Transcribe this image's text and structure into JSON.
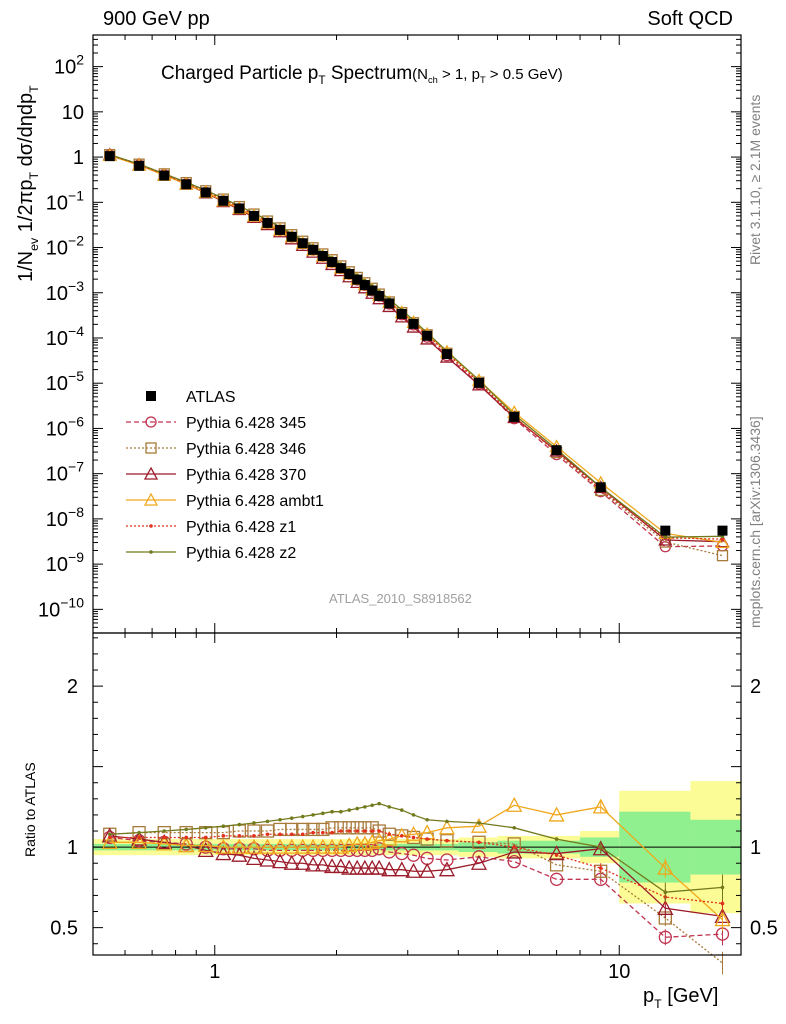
{
  "header": {
    "left": "900 GeV pp",
    "right": "Soft QCD"
  },
  "title": {
    "main": "Charged Particle p",
    "main_sub": "T",
    "main_tail": " Spectrum",
    "cond_open": "(N",
    "cond_sub": "ch",
    "cond_mid": " > 1, p",
    "cond_sub2": "T",
    "cond_tail": " > 0.5 GeV)"
  },
  "side_labels": {
    "rivet": "Rivet 3.1.10, ≥ 2.1M events",
    "mcplots": "mcplots.cern.ch [arXiv:1306.3436]"
  },
  "analysis_id": "ATLAS_2010_S8918562",
  "colors": {
    "data": "#000000",
    "p345": "#c0334e",
    "p346": "#a87a3a",
    "p370": "#9b1b2a",
    "ambt1": "#f0a81e",
    "z1": "#e0321c",
    "z2": "#727a1c",
    "band_green": "#90f090",
    "band_yellow": "#fcfc96"
  },
  "chart_data": [
    {
      "type": "scatter",
      "panel": "main",
      "ylabel_parts": {
        "a": "1/N",
        "a_sub": "ev",
        "b": " 1/2πp",
        "b_sub": "T",
        "c": " dσ/dηdp",
        "c_sub": "T"
      },
      "x_scale": "log",
      "y_scale": "log",
      "xlim": [
        0.5,
        20
      ],
      "ylim": [
        3e-11,
        500
      ],
      "x_ticks": [
        {
          "v": 1,
          "label": "1"
        },
        {
          "v": 10,
          "label": "10"
        }
      ],
      "y_ticks": [
        {
          "v": 100,
          "base": "10",
          "exp": "2"
        },
        {
          "v": 10,
          "base": "10",
          "exp": ""
        },
        {
          "v": 1,
          "base": "1",
          "exp": ""
        },
        {
          "v": 0.1,
          "base": "10",
          "exp": "−1"
        },
        {
          "v": 0.01,
          "base": "10",
          "exp": "−2"
        },
        {
          "v": 0.001,
          "base": "10",
          "exp": "−3"
        },
        {
          "v": 0.0001,
          "base": "10",
          "exp": "−4"
        },
        {
          "v": 1e-05,
          "base": "10",
          "exp": "−5"
        },
        {
          "v": 1e-06,
          "base": "10",
          "exp": "−6"
        },
        {
          "v": 1e-07,
          "base": "10",
          "exp": "−7"
        },
        {
          "v": 1e-08,
          "base": "10",
          "exp": "−8"
        },
        {
          "v": 1e-09,
          "base": "10",
          "exp": "−9"
        },
        {
          "v": 1e-10,
          "base": "10",
          "exp": "−10"
        }
      ],
      "x": [
        0.55,
        0.65,
        0.75,
        0.85,
        0.95,
        1.05,
        1.15,
        1.25,
        1.35,
        1.45,
        1.55,
        1.65,
        1.75,
        1.85,
        1.95,
        2.05,
        2.15,
        2.25,
        2.35,
        2.45,
        2.55,
        2.7,
        2.9,
        3.1,
        3.35,
        3.75,
        4.5,
        5.5,
        7.0,
        9.0,
        13.0,
        18.0
      ],
      "data_values": [
        1.05,
        0.64,
        0.39,
        0.25,
        0.165,
        0.108,
        0.073,
        0.05,
        0.035,
        0.0245,
        0.0173,
        0.0124,
        0.0089,
        0.0065,
        0.0048,
        0.0035,
        0.0026,
        0.00195,
        0.00148,
        0.00112,
        0.00085,
        0.00058,
        0.00034,
        0.000205,
        0.000112,
        4.4e-05,
        1.02e-05,
        1.8e-06,
        3.3e-07,
        5e-08,
        5.5e-09,
        5.5e-09
      ],
      "series": [
        {
          "name": "ATLAS",
          "key": "data",
          "marker": "square",
          "line": "none"
        },
        {
          "name": "Pythia 6.428 345",
          "key": "p345",
          "marker": "circle",
          "line": "dashed"
        },
        {
          "name": "Pythia 6.428 346",
          "key": "p346",
          "marker": "square-open",
          "line": "dotted"
        },
        {
          "name": "Pythia 6.428 370",
          "key": "p370",
          "marker": "triangle",
          "line": "solid"
        },
        {
          "name": "Pythia 6.428 ambt1",
          "key": "ambt1",
          "marker": "triangle",
          "line": "solid"
        },
        {
          "name": "Pythia 6.428 z1",
          "key": "z1",
          "marker": "dot",
          "line": "dotted"
        },
        {
          "name": "Pythia 6.428 z2",
          "key": "z2",
          "marker": "dot",
          "line": "solid"
        }
      ],
      "legend_position": "left-middle"
    },
    {
      "type": "line",
      "panel": "ratio",
      "ylabel": "Ratio to ATLAS",
      "xlabel_parts": {
        "a": "p",
        "a_sub": "T",
        "b": "  [GeV]"
      },
      "x_scale": "log",
      "xlim": [
        0.5,
        20
      ],
      "ylim": [
        0.33,
        2.33
      ],
      "y_ticks": [
        {
          "v": 0.5,
          "label": "0.5"
        },
        {
          "v": 1,
          "label": "1"
        },
        {
          "v": 2,
          "label": "2"
        }
      ],
      "x": [
        0.55,
        0.65,
        0.75,
        0.85,
        0.95,
        1.05,
        1.15,
        1.25,
        1.35,
        1.45,
        1.55,
        1.65,
        1.75,
        1.85,
        1.95,
        2.05,
        2.15,
        2.25,
        2.35,
        2.45,
        2.55,
        2.7,
        2.9,
        3.1,
        3.35,
        3.75,
        4.5,
        5.5,
        7.0,
        9.0,
        13.0,
        18.0
      ],
      "band_edges": [
        0.5,
        0.6,
        0.7,
        0.8,
        0.9,
        1.0,
        1.1,
        1.2,
        1.3,
        1.4,
        1.5,
        1.6,
        1.7,
        1.8,
        1.9,
        2.0,
        2.1,
        2.2,
        2.3,
        2.4,
        2.5,
        2.6,
        2.8,
        3.0,
        3.2,
        3.5,
        4.0,
        5.0,
        6.0,
        8.0,
        10.0,
        15.0,
        20.0
      ],
      "band_stat": [
        0.02,
        0.02,
        0.02,
        0.02,
        0.02,
        0.02,
        0.02,
        0.02,
        0.02,
        0.02,
        0.02,
        0.02,
        0.02,
        0.02,
        0.02,
        0.02,
        0.02,
        0.02,
        0.02,
        0.02,
        0.02,
        0.02,
        0.02,
        0.02,
        0.02,
        0.02,
        0.03,
        0.04,
        0.04,
        0.06,
        0.22,
        0.17
      ],
      "band_total": [
        0.05,
        0.05,
        0.05,
        0.05,
        0.05,
        0.05,
        0.05,
        0.05,
        0.05,
        0.05,
        0.05,
        0.05,
        0.05,
        0.05,
        0.05,
        0.05,
        0.05,
        0.05,
        0.05,
        0.05,
        0.05,
        0.05,
        0.05,
        0.05,
        0.05,
        0.05,
        0.06,
        0.07,
        0.07,
        0.1,
        0.35,
        0.41
      ],
      "series": [
        {
          "key": "p345",
          "values": [
            1.06,
            1.04,
            1.03,
            1.02,
            1.0,
            0.99,
            0.99,
            0.99,
            0.98,
            0.98,
            0.98,
            0.98,
            0.98,
            0.98,
            0.98,
            0.98,
            0.98,
            0.98,
            0.98,
            0.98,
            0.99,
            0.97,
            0.96,
            0.95,
            0.93,
            0.92,
            0.94,
            0.91,
            0.8,
            0.8,
            0.44,
            0.46
          ],
          "err": [
            0,
            0,
            0,
            0,
            0,
            0,
            0,
            0,
            0,
            0,
            0,
            0,
            0,
            0,
            0,
            0,
            0,
            0,
            0,
            0,
            0,
            0,
            0,
            0,
            0,
            0,
            0,
            0,
            0,
            0.03,
            0.05,
            0.07
          ]
        },
        {
          "key": "p346",
          "values": [
            1.08,
            1.09,
            1.09,
            1.09,
            1.09,
            1.09,
            1.1,
            1.1,
            1.1,
            1.11,
            1.11,
            1.11,
            1.11,
            1.11,
            1.12,
            1.12,
            1.12,
            1.12,
            1.12,
            1.12,
            1.1,
            1.08,
            1.07,
            1.06,
            1.05,
            1.04,
            1.03,
            1.02,
            0.89,
            0.85,
            0.56,
            0.28
          ],
          "err": [
            0,
            0,
            0,
            0,
            0,
            0,
            0,
            0,
            0,
            0,
            0,
            0,
            0,
            0,
            0,
            0,
            0,
            0,
            0,
            0,
            0,
            0,
            0,
            0,
            0,
            0,
            0,
            0,
            0,
            0.03,
            0.05,
            0.07
          ]
        },
        {
          "key": "p370",
          "values": [
            1.07,
            1.05,
            1.03,
            1.01,
            0.98,
            0.96,
            0.95,
            0.93,
            0.92,
            0.91,
            0.9,
            0.9,
            0.89,
            0.89,
            0.88,
            0.88,
            0.87,
            0.87,
            0.87,
            0.87,
            0.87,
            0.86,
            0.86,
            0.85,
            0.85,
            0.86,
            0.9,
            0.97,
            0.96,
            0.99,
            0.62,
            0.57
          ],
          "err": [
            0,
            0,
            0,
            0,
            0,
            0,
            0,
            0,
            0,
            0,
            0,
            0,
            0,
            0,
            0,
            0,
            0,
            0,
            0,
            0,
            0,
            0,
            0,
            0,
            0,
            0,
            0,
            0,
            0,
            0.03,
            0.06,
            0.07
          ]
        },
        {
          "key": "ambt1",
          "values": [
            1.03,
            1.03,
            1.02,
            1.01,
            1.01,
            1.0,
            1.0,
            1.0,
            1.0,
            1.0,
            1.0,
            1.0,
            1.0,
            1.0,
            1.0,
            1.0,
            1.01,
            1.02,
            1.02,
            1.03,
            1.04,
            1.05,
            1.07,
            1.08,
            1.09,
            1.12,
            1.13,
            1.26,
            1.2,
            1.25,
            0.87,
            0.55
          ],
          "err": [
            0,
            0,
            0,
            0,
            0,
            0,
            0,
            0,
            0,
            0,
            0,
            0,
            0,
            0,
            0,
            0,
            0,
            0,
            0,
            0,
            0,
            0,
            0,
            0,
            0,
            0,
            0,
            0,
            0,
            0.04,
            0.06,
            0.07
          ]
        },
        {
          "key": "z1",
          "values": [
            1.06,
            1.06,
            1.06,
            1.06,
            1.06,
            1.07,
            1.07,
            1.07,
            1.08,
            1.08,
            1.08,
            1.08,
            1.09,
            1.09,
            1.09,
            1.1,
            1.1,
            1.1,
            1.1,
            1.1,
            1.1,
            1.08,
            1.07,
            1.06,
            1.05,
            1.04,
            1.03,
            1.0,
            0.95,
            0.87,
            0.69,
            0.65
          ],
          "err": [
            0,
            0,
            0,
            0,
            0,
            0,
            0,
            0,
            0,
            0,
            0,
            0,
            0,
            0,
            0,
            0,
            0,
            0,
            0,
            0,
            0,
            0,
            0,
            0,
            0,
            0,
            0,
            0,
            0,
            0.03,
            0.05,
            0.06
          ]
        },
        {
          "key": "z2",
          "values": [
            1.08,
            1.09,
            1.1,
            1.11,
            1.12,
            1.13,
            1.14,
            1.15,
            1.16,
            1.17,
            1.18,
            1.19,
            1.2,
            1.21,
            1.22,
            1.22,
            1.23,
            1.24,
            1.25,
            1.26,
            1.27,
            1.25,
            1.23,
            1.2,
            1.17,
            1.16,
            1.15,
            1.12,
            1.05,
            1.0,
            0.72,
            0.75
          ],
          "err": [
            0,
            0,
            0,
            0,
            0,
            0,
            0,
            0,
            0,
            0,
            0,
            0,
            0,
            0,
            0,
            0,
            0,
            0,
            0,
            0,
            0,
            0,
            0,
            0,
            0,
            0,
            0,
            0,
            0,
            0.03,
            0.06,
            0.08
          ]
        }
      ]
    }
  ]
}
